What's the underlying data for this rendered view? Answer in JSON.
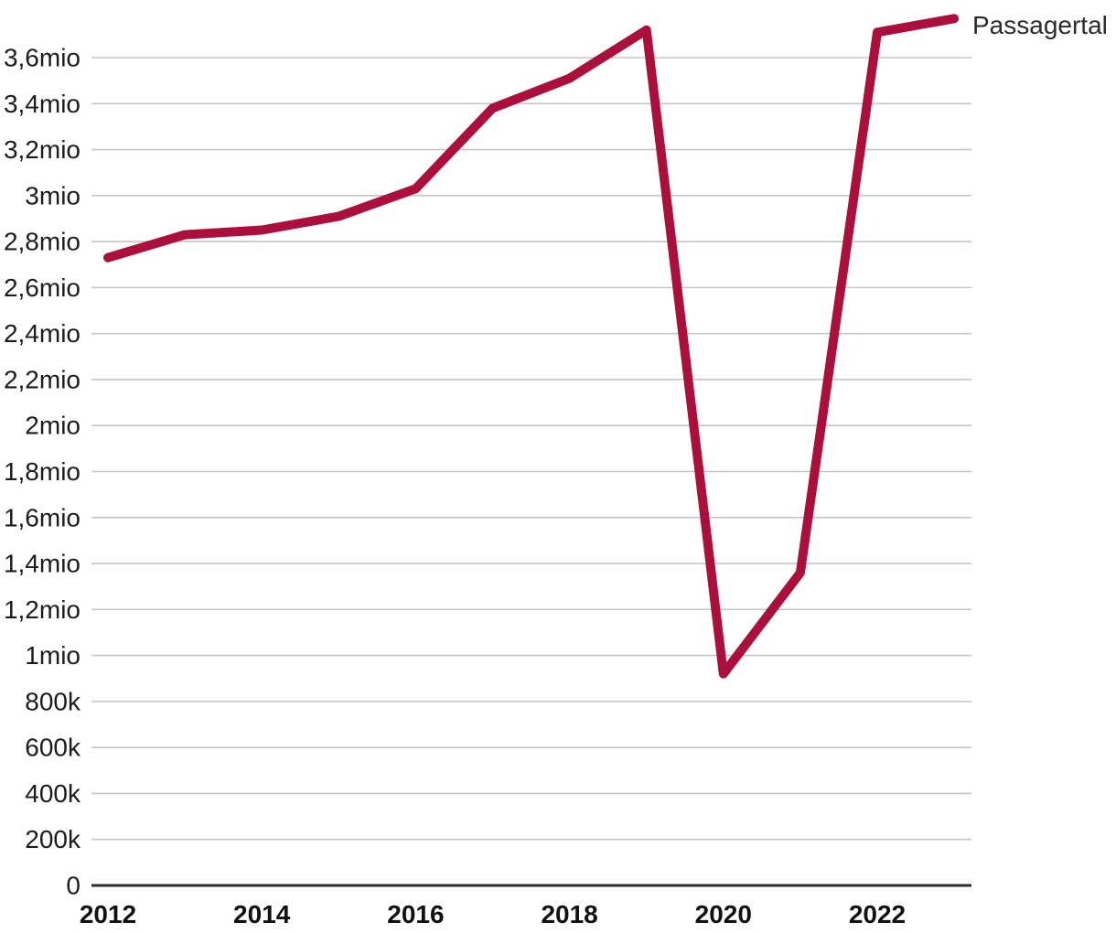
{
  "chart_data": {
    "type": "line",
    "title": "",
    "xlabel": "",
    "ylabel": "",
    "x": [
      2012,
      2013,
      2014,
      2015,
      2016,
      2017,
      2018,
      2019,
      2020,
      2021,
      2022,
      2023
    ],
    "series": [
      {
        "name": "Passagertal",
        "values_mio": [
          2.73,
          2.83,
          2.85,
          2.91,
          3.03,
          3.38,
          3.51,
          3.72,
          0.92,
          1.36,
          3.71,
          3.77
        ]
      }
    ],
    "x_ticks": [
      {
        "year": 2012,
        "label": "2012"
      },
      {
        "year": 2014,
        "label": "2014"
      },
      {
        "year": 2016,
        "label": "2016"
      },
      {
        "year": 2018,
        "label": "2018"
      },
      {
        "year": 2020,
        "label": "2020"
      },
      {
        "year": 2022,
        "label": "2022"
      }
    ],
    "y_ticks": [
      {
        "value_mio": 0,
        "label": "0"
      },
      {
        "value_mio": 0.2,
        "label": "200k"
      },
      {
        "value_mio": 0.4,
        "label": "400k"
      },
      {
        "value_mio": 0.6,
        "label": "600k"
      },
      {
        "value_mio": 0.8,
        "label": "800k"
      },
      {
        "value_mio": 1,
        "label": "1mio"
      },
      {
        "value_mio": 1.2,
        "label": "1,2mio"
      },
      {
        "value_mio": 1.4,
        "label": "1,4mio"
      },
      {
        "value_mio": 1.6,
        "label": "1,6mio"
      },
      {
        "value_mio": 1.8,
        "label": "1,8mio"
      },
      {
        "value_mio": 2,
        "label": "2mio"
      },
      {
        "value_mio": 2.2,
        "label": "2,2mio"
      },
      {
        "value_mio": 2.4,
        "label": "2,4mio"
      },
      {
        "value_mio": 2.6,
        "label": "2,6mio"
      },
      {
        "value_mio": 2.8,
        "label": "2,8mio"
      },
      {
        "value_mio": 3,
        "label": "3mio"
      },
      {
        "value_mio": 3.2,
        "label": "3,2mio"
      },
      {
        "value_mio": 3.4,
        "label": "3,4mio"
      },
      {
        "value_mio": 3.6,
        "label": "3,6mio"
      }
    ],
    "ylim_mio": [
      0,
      3.85
    ],
    "xlim_years": [
      2011.8,
      2023.2
    ],
    "grid": "horizontal",
    "legend_position": "right-of-line-end",
    "colors": {
      "line": "#ab0f3c",
      "grid": "#c6c6c6",
      "axis": "#2e2e2e",
      "text": "#1c1c1c"
    }
  }
}
